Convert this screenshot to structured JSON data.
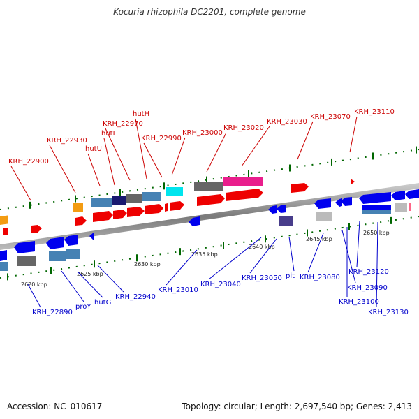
{
  "title": "Kocuria rhizophila DC2201, complete genome",
  "footer": {
    "accession": "Accession: NC_010617",
    "summary": "Topology: circular; Length: 2,697,540 bp; Genes: 2,413"
  },
  "colors": {
    "forward_label": "#cc0000",
    "reverse_label": "#0000cc",
    "tick": "#006600",
    "backbone": "#888888"
  },
  "scale_labels": [
    {
      "name": "kbp-2620",
      "text": "2620 kbp"
    },
    {
      "name": "kbp-2625",
      "text": "2625 kbp"
    },
    {
      "name": "kbp-2630",
      "text": "2630 kbp"
    },
    {
      "name": "kbp-2635",
      "text": "2635 kbp"
    },
    {
      "name": "kbp-2640",
      "text": "2640 kbp"
    },
    {
      "name": "kbp-2645",
      "text": "2645 kbp"
    },
    {
      "name": "kbp-2650",
      "text": "2650 kbp"
    }
  ],
  "forward_genes": [
    "KRH_22900",
    "KRH_22930",
    "hutU",
    "hutI",
    "KRH_22970",
    "hutH",
    "KRH_22990",
    "KRH_23000",
    "KRH_23020",
    "KRH_23030",
    "KRH_23070",
    "KRH_23110"
  ],
  "reverse_genes": [
    "KRH_22890",
    "proY",
    "hutG",
    "KRH_22940",
    "KRH_23010",
    "KRH_23040",
    "KRH_23050",
    "pit",
    "KRH_23080",
    "KRH_23090",
    "KRH_23100",
    "KRH_23120",
    "KRH_23130"
  ]
}
